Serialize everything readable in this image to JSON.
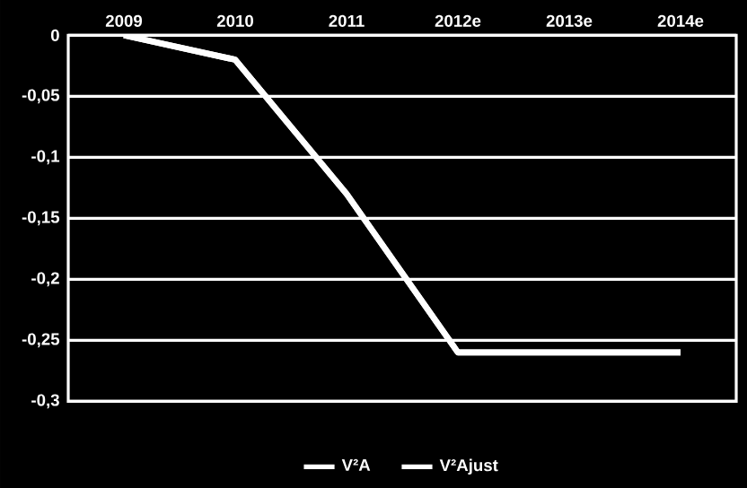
{
  "chart_data": {
    "type": "line",
    "categories": [
      "2009",
      "2010",
      "2011",
      "2012e",
      "2013e",
      "2014e"
    ],
    "series": [
      {
        "name": "V²A",
        "color": "#ffffff",
        "values": [
          0,
          -0.02,
          -0.13,
          -0.26,
          -0.26,
          -0.26
        ]
      },
      {
        "name": "V²Ajust",
        "color": "#ffffff",
        "values": [
          0,
          -0.02,
          -0.13,
          -0.26,
          -0.26,
          -0.26
        ]
      }
    ],
    "ylim": [
      -0.3,
      0
    ],
    "yticks": [
      {
        "value": 0,
        "label": "0"
      },
      {
        "value": -0.05,
        "label": "-0,05"
      },
      {
        "value": -0.1,
        "label": "-0,1"
      },
      {
        "value": -0.15,
        "label": "-0,15"
      },
      {
        "value": -0.2,
        "label": "-0,2"
      },
      {
        "value": -0.25,
        "label": "-0,25"
      },
      {
        "value": -0.3,
        "label": "-0,3"
      }
    ],
    "grid": "y",
    "legend": "bottom",
    "marker": "none",
    "line_style": "solid"
  }
}
